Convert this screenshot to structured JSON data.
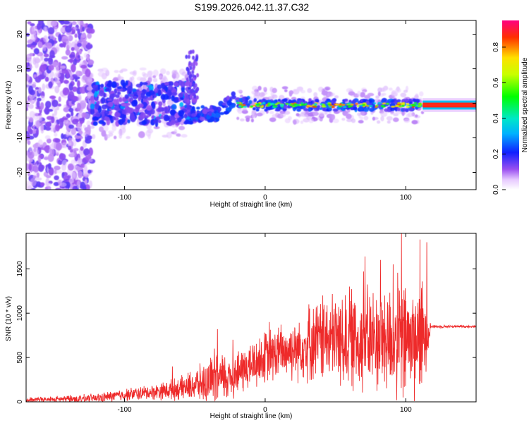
{
  "title": "S199.2026.042.11.37.C32",
  "chart_data": [
    {
      "type": "heatmap",
      "name": "spectrogram",
      "xlabel": "Height of straight line (km)",
      "ylabel": "Frequency (Hz)",
      "xlim": [
        -170,
        150
      ],
      "ylim": [
        -25,
        24
      ],
      "xticks": [
        -100,
        0,
        100
      ],
      "yticks": [
        -20,
        -10,
        0,
        10,
        20
      ],
      "description_points": [
        {
          "x_range": [
            -170,
            -125
          ],
          "freq_spread": [
            -25,
            24
          ],
          "amplitude": "low scattered"
        },
        {
          "x_range": [
            -120,
            -50
          ],
          "freq_spread": [
            -7,
            7
          ],
          "amplitude": "0.1-0.3"
        },
        {
          "x_range": [
            -50,
            -35
          ],
          "freq_center": -4,
          "amplitude": "0.2-0.3"
        },
        {
          "x_range": [
            -20,
            112
          ],
          "freq_center": -0.5,
          "amplitude": "0.3-1.0"
        },
        {
          "x_range": [
            112,
            150
          ],
          "freq_center": -0.5,
          "amplitude": "0.9-1.0"
        }
      ],
      "colorbar": {
        "label": "Normalized spectral amplitude",
        "range": [
          0,
          0.95
        ],
        "ticks": [
          0.0,
          0.2,
          0.4,
          0.6,
          0.8
        ]
      }
    },
    {
      "type": "line",
      "name": "snr",
      "xlabel": "Height of straight line (km)",
      "ylabel": "SNR (10 * v/v)",
      "xlim": [
        -170,
        150
      ],
      "ylim": [
        0,
        1900
      ],
      "xticks": [
        -100,
        0,
        100
      ],
      "yticks": [
        0,
        500,
        1000,
        1500
      ],
      "color": "#ee2a2a",
      "envelope": [
        {
          "x": -170,
          "base": 20,
          "amp": 30
        },
        {
          "x": -120,
          "base": 40,
          "amp": 60
        },
        {
          "x": -100,
          "base": 80,
          "amp": 80
        },
        {
          "x": -80,
          "base": 110,
          "amp": 100
        },
        {
          "x": -60,
          "base": 150,
          "amp": 150
        },
        {
          "x": -40,
          "base": 230,
          "amp": 280
        },
        {
          "x": -30,
          "base": 260,
          "amp": 350
        },
        {
          "x": -20,
          "base": 320,
          "amp": 300
        },
        {
          "x": 0,
          "base": 500,
          "amp": 350
        },
        {
          "x": 20,
          "base": 600,
          "amp": 400
        },
        {
          "x": 40,
          "base": 700,
          "amp": 550
        },
        {
          "x": 60,
          "base": 700,
          "amp": 650
        },
        {
          "x": 80,
          "base": 700,
          "amp": 700
        },
        {
          "x": 95,
          "base": 700,
          "amp": 800
        },
        {
          "x": 112,
          "base": 700,
          "amp": 750
        },
        {
          "x": 118,
          "base": 850,
          "amp": 20
        },
        {
          "x": 150,
          "base": 850,
          "amp": 15
        }
      ],
      "spikes": [
        {
          "x": 97,
          "y": 1900
        },
        {
          "x": 110,
          "y": 1830
        },
        {
          "x": 115,
          "y": 1800
        },
        {
          "x": 71,
          "y": 1640
        },
        {
          "x": 82,
          "y": 1600
        },
        {
          "x": 91,
          "y": 1550
        },
        {
          "x": 60,
          "y": 1300
        },
        {
          "x": 70,
          "y": 1470
        },
        {
          "x": 31,
          "y": 1100
        },
        {
          "x": 41,
          "y": 1200
        },
        {
          "x": 50,
          "y": 1110
        },
        {
          "x": 98,
          "y": 50
        },
        {
          "x": -34,
          "y": 820
        },
        {
          "x": -36,
          "y": 600
        },
        {
          "x": -23,
          "y": 700
        },
        {
          "x": 3,
          "y": 900
        },
        {
          "x": -66,
          "y": 400
        }
      ]
    }
  ]
}
